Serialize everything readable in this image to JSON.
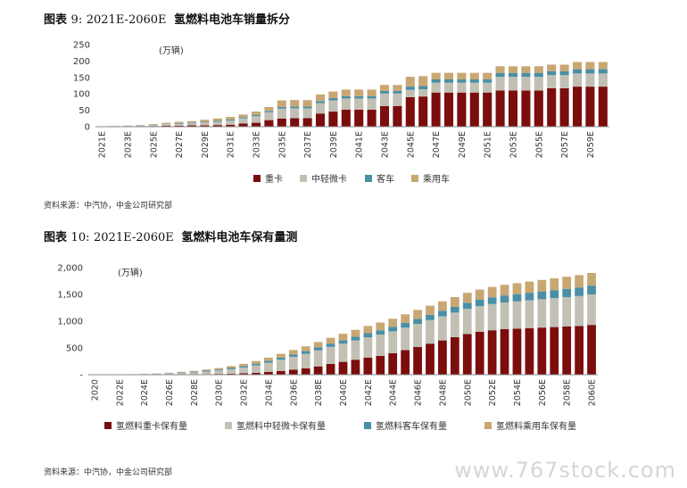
{
  "figure1": {
    "label": "图表",
    "number": "9:",
    "range": "2021E-2060E",
    "title": "氢燃料电池车销量拆分",
    "source": "资料来源：中汽协，中金公司研究部"
  },
  "figure2": {
    "label": "图表",
    "number": "10:",
    "range": "2021E-2060E",
    "title": "氢燃料电池车保有量测",
    "source": "资料来源：中汽协，中金公司研究部"
  },
  "watermark": "www.767stock.com",
  "colors": {
    "heavy": "#7b0d0d",
    "light": "#c2c0b4",
    "bus": "#4a8fa6",
    "car": "#c9a772",
    "axis": "#666666",
    "text": "#333333"
  },
  "chart_data": [
    {
      "type": "bar",
      "stacked": true,
      "unit_label": "(万辆)",
      "yticks": [
        "0",
        "50",
        "100",
        "150",
        "200",
        "250"
      ],
      "ylim": [
        0,
        250
      ],
      "x_tick_labels": [
        "2021E",
        "2023E",
        "2025E",
        "2027E",
        "2029E",
        "2031E",
        "2033E",
        "2035E",
        "2037E",
        "2039E",
        "2041E",
        "2043E",
        "2045E",
        "2047E",
        "2049E",
        "2051E",
        "2053E",
        "2055E",
        "2057E",
        "2059E"
      ],
      "categories": [
        "2021E",
        "2022E",
        "2023E",
        "2024E",
        "2025E",
        "2026E",
        "2027E",
        "2028E",
        "2029E",
        "2030E",
        "2031E",
        "2032E",
        "2033E",
        "2034E",
        "2035E",
        "2036E",
        "2037E",
        "2038E",
        "2039E",
        "2040E",
        "2041E",
        "2042E",
        "2043E",
        "2044E",
        "2045E",
        "2046E",
        "2047E",
        "2048E",
        "2049E",
        "2050E",
        "2051E",
        "2052E",
        "2053E",
        "2054E",
        "2055E",
        "2056E",
        "2057E",
        "2058E",
        "2059E",
        "2060E"
      ],
      "series": [
        {
          "name": "重卡",
          "color_key": "heavy",
          "values": [
            0.3,
            0.5,
            1,
            1.5,
            2,
            3,
            3,
            4,
            4,
            5,
            6,
            10,
            12,
            20,
            25,
            26,
            26,
            40,
            46,
            52,
            52,
            52,
            63,
            63,
            90,
            92,
            104,
            104,
            104,
            104,
            104,
            110,
            110,
            110,
            110,
            117,
            117,
            122,
            122,
            122
          ]
        },
        {
          "name": "中轻微卡",
          "color_key": "light",
          "values": [
            0.5,
            1,
            1.5,
            2,
            3,
            5,
            6,
            7,
            9,
            10,
            13,
            16,
            20,
            24,
            30,
            30,
            30,
            32,
            34,
            34,
            34,
            34,
            38,
            38,
            22,
            22,
            30,
            30,
            30,
            30,
            30,
            42,
            42,
            42,
            42,
            40,
            40,
            40,
            40,
            40
          ]
        },
        {
          "name": "客车",
          "color_key": "bus",
          "values": [
            0.2,
            0.3,
            0.5,
            0.5,
            1,
            1,
            2,
            2,
            2,
            3,
            3,
            3,
            4,
            4,
            5,
            5,
            5,
            6,
            7,
            7,
            7,
            7,
            8,
            8,
            10,
            10,
            10,
            10,
            10,
            10,
            10,
            12,
            12,
            12,
            12,
            12,
            12,
            13,
            13,
            13
          ]
        },
        {
          "name": "乘用车",
          "color_key": "car",
          "values": [
            0.2,
            0.3,
            0.5,
            1,
            2,
            3,
            4,
            4,
            6,
            7,
            8,
            8,
            10,
            12,
            20,
            20,
            20,
            20,
            20,
            20,
            20,
            20,
            18,
            18,
            30,
            30,
            20,
            20,
            20,
            20,
            20,
            20,
            20,
            20,
            20,
            20,
            20,
            22,
            22,
            22
          ]
        }
      ]
    },
    {
      "type": "bar",
      "stacked": true,
      "unit_label": "(万辆)",
      "yticks": [
        "-",
        "500",
        "1,000",
        "1,500",
        "2,000"
      ],
      "ylim": [
        0,
        2000
      ],
      "x_tick_labels": [
        "2020",
        "2022E",
        "2024E",
        "2026E",
        "2028E",
        "2030E",
        "2032E",
        "2034E",
        "2036E",
        "2038E",
        "2040E",
        "2042E",
        "2044E",
        "2046E",
        "2048E",
        "2050E",
        "2052E",
        "2054E",
        "2056E",
        "2058E",
        "2060E"
      ],
      "categories": [
        "2020",
        "2021E",
        "2022E",
        "2023E",
        "2024E",
        "2025E",
        "2026E",
        "2027E",
        "2028E",
        "2029E",
        "2030E",
        "2031E",
        "2032E",
        "2033E",
        "2034E",
        "2035E",
        "2036E",
        "2037E",
        "2038E",
        "2039E",
        "2040E",
        "2041E",
        "2042E",
        "2043E",
        "2044E",
        "2045E",
        "2046E",
        "2047E",
        "2048E",
        "2049E",
        "2050E",
        "2051E",
        "2052E",
        "2053E",
        "2054E",
        "2055E",
        "2056E",
        "2057E",
        "2058E",
        "2059E",
        "2060E"
      ],
      "series": [
        {
          "name": "氢燃料重卡保有量",
          "color_key": "heavy",
          "values": [
            0,
            0,
            0,
            0,
            0,
            2,
            4,
            6,
            8,
            10,
            14,
            18,
            25,
            35,
            50,
            70,
            95,
            120,
            155,
            200,
            240,
            280,
            320,
            350,
            400,
            460,
            520,
            580,
            640,
            700,
            760,
            800,
            830,
            850,
            860,
            870,
            880,
            890,
            900,
            910,
            930
          ]
        },
        {
          "name": "氢燃料中轻微卡保有量",
          "color_key": "light",
          "values": [
            1,
            2,
            3,
            5,
            8,
            12,
            18,
            25,
            35,
            50,
            65,
            85,
            110,
            140,
            175,
            210,
            240,
            270,
            300,
            320,
            340,
            360,
            380,
            400,
            410,
            420,
            430,
            440,
            450,
            460,
            470,
            480,
            490,
            500,
            510,
            520,
            530,
            540,
            550,
            560,
            570
          ]
        },
        {
          "name": "氢燃料客车保有量",
          "color_key": "bus",
          "values": [
            0.5,
            1,
            1.5,
            2,
            3,
            5,
            7,
            10,
            12,
            15,
            18,
            22,
            26,
            30,
            35,
            40,
            45,
            50,
            55,
            60,
            65,
            70,
            75,
            80,
            85,
            90,
            95,
            100,
            105,
            110,
            115,
            120,
            125,
            130,
            135,
            140,
            145,
            150,
            155,
            160,
            165
          ]
        },
        {
          "name": "氢燃料乘用车保有量",
          "color_key": "car",
          "values": [
            0.5,
            1,
            1.5,
            2,
            3,
            5,
            8,
            12,
            16,
            22,
            28,
            35,
            42,
            50,
            60,
            70,
            80,
            90,
            100,
            110,
            120,
            128,
            136,
            144,
            150,
            158,
            165,
            170,
            175,
            180,
            185,
            190,
            195,
            200,
            205,
            210,
            215,
            220,
            225,
            230,
            235
          ]
        }
      ]
    }
  ]
}
